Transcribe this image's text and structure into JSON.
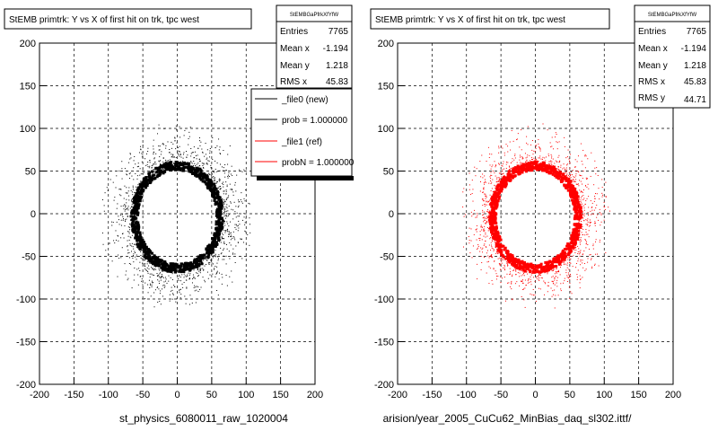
{
  "panels": [
    {
      "title": "StEMB primtrk: Y vs X of first hit on trk, tpc west",
      "stats": {
        "name": "StEMBGaPfrkXfYfW",
        "rows": [
          {
            "label": "Entries",
            "value": "7765"
          },
          {
            "label": "Mean x",
            "value": "-1.194"
          },
          {
            "label": "Mean y",
            "value": "1.218"
          },
          {
            "label": "RMS x",
            "value": "45.83"
          }
        ]
      },
      "legend": [
        {
          "label": "_file0 (new)",
          "color": "#000000"
        },
        {
          "label": "prob = 1.000000",
          "color": "#000000"
        },
        {
          "label": "_file1 (ref)",
          "color": "#ff0000"
        },
        {
          "label": "probN = 1.000000",
          "color": "#ff0000"
        }
      ],
      "file_label": "st_physics_6080011_raw_1020004",
      "marker_color": "#000000"
    },
    {
      "title": "StEMB primtrk: Y vs X of first hit on trk, tpc west",
      "stats": {
        "name": "StEMBGaPfrkXfYfW",
        "rows": [
          {
            "label": "Entries",
            "value": "7765"
          },
          {
            "label": "Mean x",
            "value": "-1.194"
          },
          {
            "label": "Mean y",
            "value": "1.218"
          },
          {
            "label": "RMS x",
            "value": "45.83"
          },
          {
            "label": "RMS y",
            "value": "44.71"
          }
        ]
      },
      "legend": [],
      "file_label": "arision/year_2005_CuCu62_MinBias_daq_sl302.ittf/",
      "marker_color": "#ff0000"
    }
  ],
  "chart_data": [
    {
      "type": "scatter",
      "title": "StEMB primtrk: Y vs X of first hit on trk, tpc west",
      "xlim": [
        -200,
        200
      ],
      "ylim": [
        -200,
        200
      ],
      "x_ticks": [
        -200,
        -150,
        -100,
        -50,
        0,
        50,
        100,
        150,
        200
      ],
      "y_ticks": [
        -200,
        -150,
        -100,
        -50,
        0,
        50,
        100,
        150,
        200
      ],
      "grid": true,
      "series": [
        {
          "name": "_file0 (new)",
          "color": "#000000",
          "ring": {
            "center": [
              0,
              -4
            ],
            "rx": 62,
            "ry": 60,
            "outer_scatter_max": 110
          }
        }
      ]
    },
    {
      "type": "scatter",
      "title": "StEMB primtrk: Y vs X of first hit on trk, tpc west",
      "xlim": [
        -200,
        200
      ],
      "ylim": [
        -200,
        200
      ],
      "x_ticks": [
        -200,
        -150,
        -100,
        -50,
        0,
        50,
        100,
        150,
        200
      ],
      "y_ticks": [
        -200,
        -150,
        -100,
        -50,
        0,
        50,
        100,
        150,
        200
      ],
      "grid": true,
      "series": [
        {
          "name": "_file1 (ref)",
          "color": "#ff0000",
          "ring": {
            "center": [
              0,
              -4
            ],
            "rx": 62,
            "ry": 60,
            "outer_scatter_max": 110
          }
        }
      ]
    }
  ]
}
